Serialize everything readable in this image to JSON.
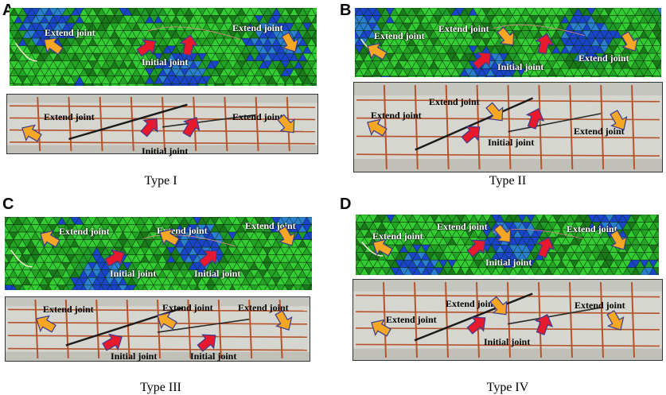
{
  "panels": [
    {
      "letter": "A",
      "caption": "Type I",
      "sim": {
        "extend1": "Extend joint",
        "extend2": "Extend joint",
        "initial": "Initial joint"
      },
      "photo": {
        "extend1": "Extend joint",
        "extend2": "Extend joint",
        "initial": "Initial joint"
      }
    },
    {
      "letter": "B",
      "caption": "Type II",
      "sim": {
        "extend1": "Extend joint",
        "extend2": "Extend joint",
        "extend3": "Extend joint",
        "initial": "Initial joint"
      },
      "photo": {
        "extend1": "Extend joint",
        "extend2": "Extend joint",
        "extend3": "Extend joint",
        "initial": "Initial joint"
      }
    },
    {
      "letter": "C",
      "caption": "Type III",
      "sim": {
        "extend1": "Extend joint",
        "extend2": "Extend joint",
        "extend3": "Extend joint",
        "initial1": "Initial joint",
        "initial2": "Initial joint"
      },
      "photo": {
        "extend1": "Extend joint",
        "extend2": "Extend joint",
        "extend3": "Extend joint",
        "initial1": "Initial joint",
        "initial2": "Initial joint"
      }
    },
    {
      "letter": "D",
      "caption": "Type IV",
      "sim": {
        "extend1": "Extend joint",
        "extend2": "Extend joint",
        "extend3": "Extend joint",
        "initial": "Initial joint"
      },
      "photo": {
        "extend1": "Extend joint",
        "extend2": "Extend joint",
        "extend3": "Extend joint",
        "initial": "Initial joint"
      }
    }
  ],
  "colors": {
    "mesh_green": "#33cc33",
    "mesh_dark_green": "#1a7a1a",
    "mesh_blue": "#1a44cc",
    "arrow_orange": "#f5a623",
    "arrow_red": "#e8192c",
    "arrow_outline": "#3b3b8f",
    "photo_bg": "#d6d6d0",
    "grid_rust": "#b5532a"
  },
  "icons": {
    "extend_arrow": "orange-arrow-icon",
    "initial_arrow": "red-arrow-icon"
  }
}
